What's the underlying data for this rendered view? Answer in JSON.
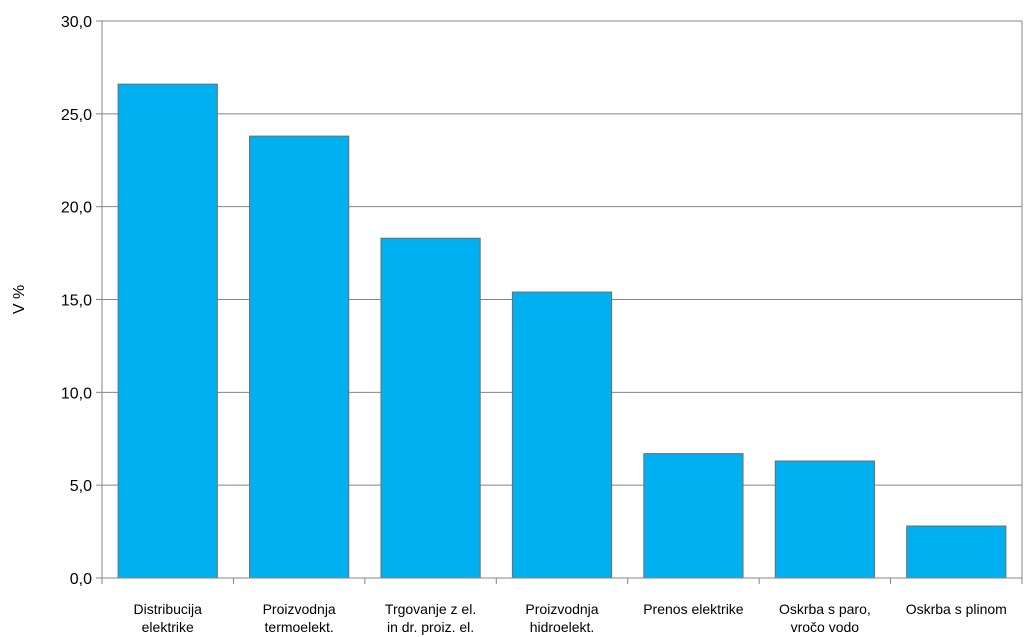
{
  "chart_data": {
    "type": "bar",
    "title": "",
    "xlabel": "",
    "ylabel": "V %",
    "ylim": [
      0,
      30
    ],
    "yticks": [
      "0,0",
      "5,0",
      "10,0",
      "15,0",
      "20,0",
      "25,0",
      "30,0"
    ],
    "grid": true,
    "legend": "none",
    "bar_color": "#00B0F0",
    "categories": [
      [
        "Distribucija",
        "elektrike"
      ],
      [
        "Proizvodnja",
        "termoelekt."
      ],
      [
        "Trgovanje z el.",
        "in dr. proiz. el."
      ],
      [
        "Proizvodnja",
        "hidroelekt."
      ],
      [
        "Prenos elektrike"
      ],
      [
        "Oskrba s paro,",
        "vročo vodo"
      ],
      [
        "Oskrba s plinom"
      ]
    ],
    "values": [
      26.6,
      23.8,
      18.3,
      15.4,
      6.7,
      6.3,
      2.8
    ]
  }
}
